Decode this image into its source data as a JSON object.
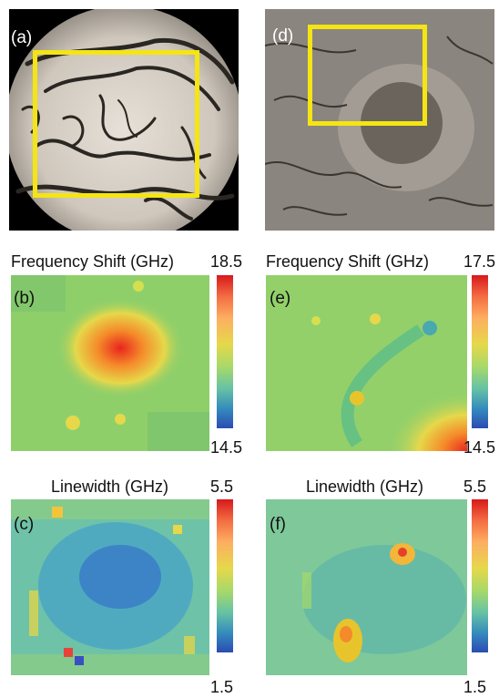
{
  "panels": {
    "a": {
      "label": "(a)"
    },
    "b": {
      "label": "(b)",
      "title": "Frequency Shift (GHz)",
      "cmax": "18.5",
      "cmin": "14.5"
    },
    "c": {
      "label": "(c)",
      "title": "Linewidth (GHz)",
      "cmax": "5.5",
      "cmin": "1.5"
    },
    "d": {
      "label": "(d)"
    },
    "e": {
      "label": "(e)",
      "title": "Frequency Shift (GHz)",
      "cmax": "17.5",
      "cmin": "14.5"
    },
    "f": {
      "label": "(f)",
      "title": "Linewidth (GHz)",
      "cmax": "5.5",
      "cmin": "1.5"
    }
  },
  "colors": {
    "highlight_box": "#f4e513",
    "colormap": "jet-like (blue-green-yellow-red)"
  }
}
